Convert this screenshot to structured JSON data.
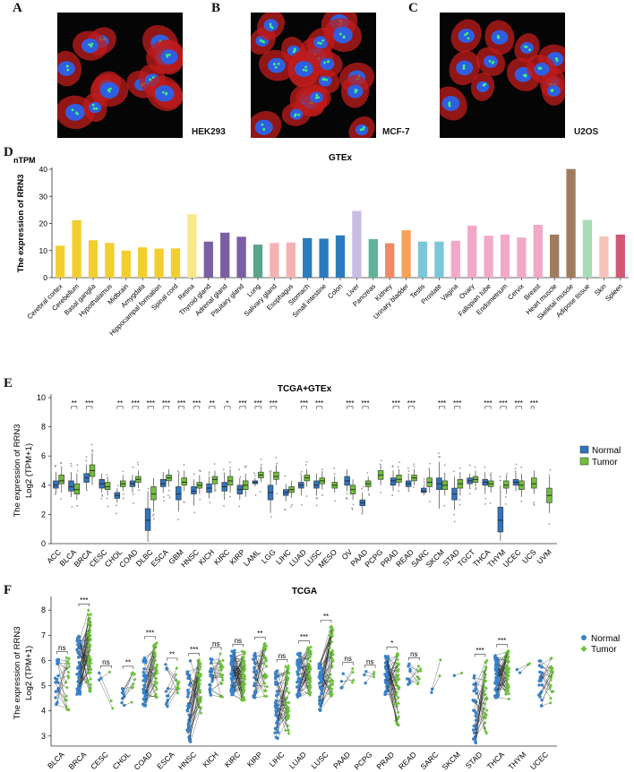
{
  "panels": {
    "A": {
      "letter": "A",
      "cell_line": "HEK293"
    },
    "B": {
      "letter": "B",
      "cell_line": "MCF-7"
    },
    "C": {
      "letter": "C",
      "cell_line": "U2OS"
    },
    "D": {
      "letter": "D"
    },
    "E": {
      "letter": "E"
    },
    "F": {
      "letter": "F"
    }
  },
  "colors": {
    "normal": "#2f74c0",
    "tumor": "#6fbf3a",
    "f_normal": "#3a82c8",
    "f_tumor": "#6cc23a"
  },
  "chart_data": [
    {
      "id": "D",
      "type": "bar",
      "title": "GTEx",
      "unit_label": "nTPM",
      "ylabel": "The expression of RRN3",
      "ylim": [
        0,
        40
      ],
      "yticks": [
        0,
        10,
        20,
        30,
        40
      ],
      "categories": [
        "Cerebral cortex",
        "Cerebellum",
        "Basal ganglia",
        "Hypothalamus",
        "Midbrain",
        "Amygdala",
        "Hippocampal formation",
        "Spinal cord",
        "Retina",
        "Thyroid gland",
        "Adrenal gland",
        "Pituitary gland",
        "Lung",
        "Salivary gland",
        "Esophagus",
        "Stomach",
        "Small intestine",
        "Colon",
        "Liver",
        "Pancreas",
        "Kidney",
        "Urinary bladder",
        "Testis",
        "Prostate",
        "Vagina",
        "Ovary",
        "Fallopian tube",
        "Endometrium",
        "Cervix",
        "Breast",
        "Heart muscle",
        "Skeletal muscle",
        "Adipose tissue",
        "Skin",
        "Spleen"
      ],
      "values": [
        11.8,
        21.2,
        13.8,
        12.8,
        10.0,
        11.2,
        10.7,
        10.8,
        23.4,
        13.3,
        16.6,
        15.1,
        12.2,
        12.8,
        13.0,
        14.6,
        14.4,
        15.6,
        24.6,
        14.2,
        12.7,
        17.5,
        13.3,
        13.3,
        13.6,
        19.2,
        15.5,
        15.9,
        14.8,
        19.5,
        15.9,
        40.1,
        21.3,
        15.2,
        15.9
      ],
      "bar_colors": [
        "#f2cf2e",
        "#f2cf2e",
        "#f2cf2e",
        "#f2cf2e",
        "#f2cf2e",
        "#f2cf2e",
        "#f2cf2e",
        "#f2cf2e",
        "#f7e98a",
        "#7a5fa3",
        "#7a5fa3",
        "#7a5fa3",
        "#5aa48a",
        "#f4b3b3",
        "#f4b3b3",
        "#2a7bbd",
        "#2a7bbd",
        "#2a7bbd",
        "#c9bde3",
        "#5fb39a",
        "#f08a66",
        "#f5a25d",
        "#7dc6d8",
        "#7dc6d8",
        "#f2a9c8",
        "#f2a9c8",
        "#f2a9c8",
        "#f2a9c8",
        "#f2a9c8",
        "#f2a9c8",
        "#a07c5e",
        "#a07c5e",
        "#a6dcb6",
        "#f7c2b8",
        "#d05874"
      ]
    },
    {
      "id": "E",
      "type": "box",
      "title": "TCGA+GTEx",
      "ylabel_line1": "The expression of RRN3",
      "ylabel_line2": "Log2 (TPM+1)",
      "ylim": [
        0,
        10
      ],
      "yticks": [
        0,
        2,
        4,
        6,
        8,
        10
      ],
      "legend": {
        "position": "right",
        "entries": [
          "Normal",
          "Tumor"
        ]
      },
      "categories": [
        "ACC",
        "BLCA",
        "BRCA",
        "CESC",
        "CHOL",
        "COAD",
        "DLBC",
        "ESCA",
        "GBM",
        "HNSC",
        "KICH",
        "KIRC",
        "KIRP",
        "LAML",
        "LGG",
        "LIHC",
        "LUAD",
        "LUSC",
        "MESO",
        "OV",
        "PAAD",
        "PCPG",
        "PRAD",
        "READ",
        "SARC",
        "SKCM",
        "STAD",
        "TGCT",
        "THCA",
        "THYM",
        "UCEC",
        "UCS",
        "UVM"
      ],
      "normal": [
        [
          3.4,
          3.8,
          4.0,
          4.3,
          4.9
        ],
        [
          3.2,
          3.6,
          3.9,
          4.3,
          4.9
        ],
        [
          3.7,
          4.2,
          4.5,
          4.8,
          5.4
        ],
        [
          3.5,
          3.8,
          4.1,
          4.4,
          4.8
        ],
        [
          2.8,
          3.1,
          3.3,
          3.5,
          3.8
        ],
        [
          3.5,
          3.9,
          4.1,
          4.3,
          4.7
        ],
        [
          0.2,
          0.9,
          1.6,
          2.4,
          3.6
        ],
        [
          3.6,
          3.9,
          4.1,
          4.4,
          4.9
        ],
        [
          2.2,
          3.0,
          3.4,
          3.9,
          4.8
        ],
        [
          2.6,
          3.4,
          3.6,
          3.9,
          4.4
        ],
        [
          3.1,
          3.5,
          3.8,
          4.1,
          4.6
        ],
        [
          3.0,
          3.6,
          3.9,
          4.2,
          4.8
        ],
        [
          3.0,
          3.4,
          3.7,
          4.0,
          4.5
        ],
        [
          3.9,
          4.1,
          4.2,
          4.3,
          4.5
        ],
        [
          2.1,
          3.0,
          3.5,
          4.0,
          4.9
        ],
        [
          2.9,
          3.3,
          3.5,
          3.7,
          4.1
        ],
        [
          3.3,
          3.8,
          4.0,
          4.2,
          4.7
        ],
        [
          3.3,
          3.8,
          4.0,
          4.3,
          4.8
        ],
        [],
        [
          3.6,
          4.0,
          4.3,
          4.6,
          5.1
        ],
        [
          2.1,
          2.6,
          2.8,
          3.0,
          3.5
        ],
        [],
        [
          3.6,
          4.0,
          4.3,
          4.5,
          5.0
        ],
        [
          3.6,
          3.9,
          4.1,
          4.3,
          4.8
        ],
        [
          3.3,
          3.5,
          3.6,
          3.8,
          4.0
        ],
        [
          2.4,
          3.7,
          4.1,
          4.5,
          5.6
        ],
        [
          2.3,
          3.0,
          3.4,
          3.8,
          4.6
        ],
        [
          3.8,
          4.1,
          4.3,
          4.5,
          4.8
        ],
        [
          3.4,
          4.0,
          4.2,
          4.4,
          4.9
        ],
        [
          0.2,
          0.8,
          1.6,
          2.5,
          4.0
        ],
        [
          3.6,
          4.0,
          4.2,
          4.4,
          4.9
        ],
        [],
        []
      ],
      "tumor": [
        [
          3.5,
          4.1,
          4.3,
          4.7,
          5.3
        ],
        [
          3.0,
          3.4,
          3.7,
          4.1,
          4.8
        ],
        [
          4.0,
          4.6,
          5.0,
          5.4,
          6.2
        ],
        [
          3.3,
          3.7,
          3.9,
          4.2,
          4.6
        ],
        [
          3.6,
          3.9,
          4.1,
          4.3,
          4.7
        ],
        [
          3.8,
          4.2,
          4.4,
          4.6,
          5.0
        ],
        [
          2.2,
          3.0,
          3.4,
          3.9,
          4.5
        ],
        [
          3.9,
          4.3,
          4.5,
          4.7,
          5.1
        ],
        [
          3.6,
          4.0,
          4.2,
          4.5,
          5.0
        ],
        [
          3.4,
          3.8,
          4.0,
          4.2,
          4.7
        ],
        [
          3.7,
          4.1,
          4.4,
          4.6,
          5.0
        ],
        [
          3.5,
          4.0,
          4.3,
          4.6,
          5.1
        ],
        [
          3.2,
          3.7,
          4.0,
          4.3,
          4.8
        ],
        [
          4.2,
          4.5,
          4.7,
          4.9,
          5.3
        ],
        [
          4.0,
          4.4,
          4.6,
          4.9,
          5.4
        ],
        [
          3.2,
          3.5,
          3.7,
          3.9,
          4.3
        ],
        [
          3.9,
          4.3,
          4.5,
          4.7,
          5.1
        ],
        [
          3.7,
          4.1,
          4.3,
          4.5,
          4.9
        ],
        [
          3.5,
          3.8,
          4.0,
          4.2,
          4.6
        ],
        [
          3.0,
          3.4,
          3.7,
          4.0,
          4.4
        ],
        [
          3.6,
          3.9,
          4.1,
          4.3,
          4.6
        ],
        [
          4.0,
          4.4,
          4.7,
          5.0,
          5.4
        ],
        [
          3.9,
          4.2,
          4.4,
          4.7,
          5.1
        ],
        [
          4.0,
          4.3,
          4.5,
          4.7,
          5.1
        ],
        [
          3.5,
          3.9,
          4.2,
          4.5,
          5.1
        ],
        [
          3.3,
          3.7,
          4.0,
          4.3,
          4.8
        ],
        [
          3.3,
          3.8,
          4.1,
          4.4,
          4.9
        ],
        [
          3.9,
          4.2,
          4.4,
          4.6,
          5.0
        ],
        [
          3.5,
          3.9,
          4.1,
          4.3,
          4.7
        ],
        [
          3.4,
          3.8,
          4.0,
          4.3,
          4.7
        ],
        [
          3.3,
          3.7,
          4.0,
          4.3,
          4.8
        ],
        [
          3.4,
          3.8,
          4.1,
          4.5,
          5.0
        ],
        [
          2.1,
          2.8,
          3.3,
          3.8,
          4.6
        ]
      ],
      "significance": [
        "",
        "**",
        "***",
        "",
        "**",
        "***",
        "***",
        "***",
        "***",
        "***",
        "**",
        "*",
        "***",
        "***",
        "***",
        "",
        "***",
        "***",
        "",
        "***",
        "***",
        "",
        "***",
        "***",
        "",
        "***",
        "***",
        "",
        "***",
        "***",
        "***",
        "***",
        ""
      ]
    },
    {
      "id": "F",
      "type": "paired-scatter",
      "title": "TCGA",
      "ylabel_line1": "The expression of RRN3",
      "ylabel_line2": "Log2 (TPM+1)",
      "ylim": [
        2.6,
        8.4
      ],
      "yticks": [
        3,
        4,
        5,
        6,
        7,
        8
      ],
      "legend": {
        "position": "right",
        "entries": [
          "Normal",
          "Tumor"
        ]
      },
      "categories": [
        "BLCA",
        "BRCA",
        "CESC",
        "CHOL",
        "COAD",
        "ESCA",
        "HNSC",
        "KICH",
        "KIRC",
        "KIRP",
        "LIHC",
        "LUAD",
        "LUSC",
        "PAAD",
        "PCPG",
        "PRAD",
        "READ",
        "SARC",
        "SKCM",
        "STAD",
        "THCA",
        "THYM",
        "UCEC"
      ],
      "significance": [
        "ns",
        "***",
        "ns",
        "**",
        "***",
        "**",
        "***",
        "ns",
        "ns",
        "**",
        "ns",
        "***",
        "**",
        "ns",
        "ns",
        "*",
        "ns",
        "",
        "",
        "***",
        "***",
        "",
        ""
      ],
      "groups": [
        {
          "n": 19,
          "normal_range": [
            4.2,
            6.1
          ],
          "tumor_range": [
            4.0,
            6.2
          ]
        },
        {
          "n": 60,
          "normal_range": [
            4.6,
            7.0
          ],
          "tumor_range": [
            4.7,
            8.0
          ]
        },
        {
          "n": 3,
          "normal_range": [
            4.9,
            5.8
          ],
          "tumor_range": [
            3.8,
            5.6
          ]
        },
        {
          "n": 9,
          "normal_range": [
            4.2,
            5.0
          ],
          "tumor_range": [
            4.3,
            6.0
          ]
        },
        {
          "n": 41,
          "normal_range": [
            4.2,
            6.1
          ],
          "tumor_range": [
            4.5,
            6.7
          ]
        },
        {
          "n": 12,
          "normal_range": [
            4.0,
            5.9
          ],
          "tumor_range": [
            4.7,
            6.1
          ]
        },
        {
          "n": 43,
          "normal_range": [
            2.7,
            6.0
          ],
          "tumor_range": [
            3.9,
            6.1
          ]
        },
        {
          "n": 24,
          "normal_range": [
            4.6,
            6.1
          ],
          "tumor_range": [
            4.4,
            6.3
          ]
        },
        {
          "n": 72,
          "normal_range": [
            4.6,
            6.4
          ],
          "tumor_range": [
            4.4,
            6.4
          ]
        },
        {
          "n": 31,
          "normal_range": [
            4.5,
            6.3
          ],
          "tumor_range": [
            4.4,
            6.8
          ]
        },
        {
          "n": 50,
          "normal_range": [
            2.9,
            5.6
          ],
          "tumor_range": [
            3.1,
            5.8
          ]
        },
        {
          "n": 57,
          "normal_range": [
            4.5,
            6.3
          ],
          "tumor_range": [
            4.6,
            6.6
          ]
        },
        {
          "n": 49,
          "normal_range": [
            4.0,
            6.0
          ],
          "tumor_range": [
            4.3,
            7.4
          ]
        },
        {
          "n": 4,
          "normal_range": [
            4.9,
            5.5
          ],
          "tumor_range": [
            4.9,
            5.8
          ]
        },
        {
          "n": 3,
          "normal_range": [
            5.1,
            5.6
          ],
          "tumor_range": [
            5.3,
            6.2
          ]
        },
        {
          "n": 52,
          "normal_range": [
            4.6,
            6.2
          ],
          "tumor_range": [
            3.3,
            6.3
          ]
        },
        {
          "n": 9,
          "normal_range": [
            5.0,
            5.9
          ],
          "tumor_range": [
            4.9,
            6.0
          ]
        },
        {
          "n": 2,
          "normal_range": [
            4.7,
            4.9
          ],
          "tumor_range": [
            5.3,
            6.1
          ]
        },
        {
          "n": 1,
          "normal_range": [
            5.4,
            5.4
          ],
          "tumor_range": [
            5.5,
            5.5
          ]
        },
        {
          "n": 32,
          "normal_range": [
            2.6,
            5.6
          ],
          "tumor_range": [
            3.1,
            6.0
          ]
        },
        {
          "n": 58,
          "normal_range": [
            4.5,
            6.2
          ],
          "tumor_range": [
            4.4,
            6.4
          ]
        },
        {
          "n": 2,
          "normal_range": [
            5.5,
            5.8
          ],
          "tumor_range": [
            5.5,
            5.9
          ]
        },
        {
          "n": 24,
          "normal_range": [
            4.1,
            6.0
          ],
          "tumor_range": [
            4.2,
            6.1
          ]
        }
      ]
    }
  ]
}
